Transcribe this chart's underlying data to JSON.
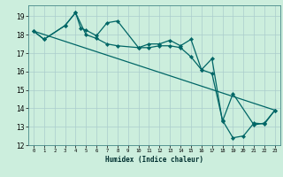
{
  "xlabel": "Humidex (Indice chaleur)",
  "bg_color": "#cceedd",
  "grid_major_color": "#aacccc",
  "grid_minor_color": "#bbdddd",
  "line_color": "#006666",
  "xlim": [
    -0.5,
    23.5
  ],
  "ylim": [
    12,
    19.6
  ],
  "yticks": [
    12,
    13,
    14,
    15,
    16,
    17,
    18,
    19
  ],
  "xticks": [
    0,
    1,
    2,
    3,
    4,
    5,
    6,
    7,
    8,
    9,
    10,
    11,
    12,
    13,
    14,
    15,
    16,
    17,
    18,
    19,
    20,
    21,
    22,
    23
  ],
  "line1_x": [
    0,
    1,
    3,
    4,
    4.5,
    5,
    6,
    7,
    8,
    10,
    11,
    12,
    13,
    14,
    15,
    16,
    17,
    18,
    19,
    20,
    21,
    22,
    23
  ],
  "line1_y": [
    18.2,
    17.75,
    18.5,
    19.2,
    18.35,
    18.25,
    17.95,
    18.65,
    18.75,
    17.3,
    17.5,
    17.5,
    17.7,
    17.4,
    17.75,
    16.1,
    15.9,
    13.35,
    12.4,
    12.5,
    13.2,
    13.15,
    13.9
  ],
  "line2_x": [
    0,
    1,
    3,
    4,
    5,
    6,
    7,
    8,
    10,
    11,
    12,
    13,
    14,
    15,
    16,
    17,
    18,
    19,
    21,
    22,
    23
  ],
  "line2_y": [
    18.2,
    17.75,
    18.5,
    19.2,
    18.0,
    17.8,
    17.5,
    17.4,
    17.3,
    17.3,
    17.4,
    17.4,
    17.3,
    16.8,
    16.1,
    16.7,
    13.3,
    14.8,
    13.1,
    13.2,
    13.9
  ],
  "line3_x": [
    0,
    23
  ],
  "line3_y": [
    18.2,
    13.9
  ],
  "figwidth": 3.2,
  "figheight": 2.0,
  "dpi": 100
}
